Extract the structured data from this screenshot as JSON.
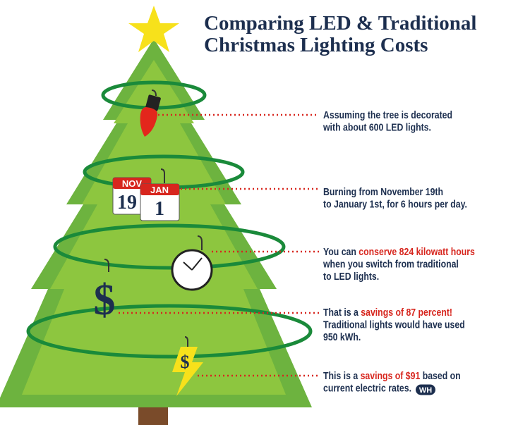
{
  "title": [
    "Comparing LED & Traditional",
    "Christmas Lighting Costs"
  ],
  "calendars": [
    {
      "month": "NOV",
      "day": "19"
    },
    {
      "month": "JAN",
      "day": "1"
    }
  ],
  "icons": {
    "dollar_large": "$",
    "dollar_small": "$",
    "badge": "WH"
  },
  "notes": [
    {
      "lines": [
        [
          {
            "text": "Assuming the tree is decorated",
            "emphasis": false
          }
        ],
        [
          {
            "text": "with about 600 LED lights.",
            "emphasis": false
          }
        ]
      ]
    },
    {
      "lines": [
        [
          {
            "text": "Burning from November 19th",
            "emphasis": false
          }
        ],
        [
          {
            "text": "to January 1st, for 6 hours per day.",
            "emphasis": false
          }
        ]
      ]
    },
    {
      "lines": [
        [
          {
            "text": "You can ",
            "emphasis": false
          },
          {
            "text": "conserve 824 kilowatt hours",
            "emphasis": true
          }
        ],
        [
          {
            "text": "when you switch from traditional",
            "emphasis": false
          }
        ],
        [
          {
            "text": "to LED lights.",
            "emphasis": false
          }
        ]
      ]
    },
    {
      "lines": [
        [
          {
            "text": "That is a ",
            "emphasis": false
          },
          {
            "text": "savings of 87 percent!",
            "emphasis": true
          }
        ],
        [
          {
            "text": "Traditional lights would have used",
            "emphasis": false
          }
        ],
        [
          {
            "text": "950 kWh.",
            "emphasis": false
          }
        ]
      ]
    },
    {
      "lines": [
        [
          {
            "text": "This is a ",
            "emphasis": false
          },
          {
            "text": "savings of $91",
            "emphasis": true
          },
          {
            "text": " based on",
            "emphasis": false
          }
        ],
        [
          {
            "text": "current electric rates.",
            "emphasis": false
          }
        ]
      ]
    }
  ]
}
